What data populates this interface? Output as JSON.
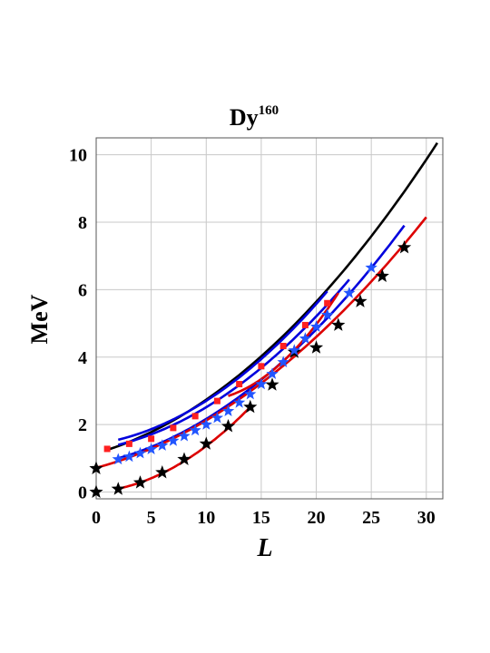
{
  "chart_data": {
    "type": "scatter",
    "title": "Dy",
    "title_superscript": "160",
    "xlabel": "L",
    "ylabel": "MeV",
    "xlim": [
      0,
      31.5
    ],
    "ylim": [
      -0.2,
      10.5
    ],
    "xticks": [
      0,
      5,
      10,
      15,
      20,
      25,
      30
    ],
    "yticks": [
      0,
      2,
      4,
      6,
      8,
      10
    ],
    "grid": true,
    "series": [
      {
        "color": "#000000",
        "marker": "star",
        "x": [
          0,
          2,
          4,
          6,
          8,
          10,
          12,
          14,
          16,
          18,
          20,
          22,
          24,
          26,
          28
        ],
        "y": [
          0.0,
          0.09,
          0.28,
          0.58,
          0.97,
          1.43,
          1.95,
          2.52,
          3.18,
          4.15,
          4.28,
          4.95,
          5.65,
          6.4,
          7.25
        ]
      },
      {
        "color": "#000000",
        "marker": "star",
        "x": [
          0
        ],
        "y": [
          0.7
        ]
      },
      {
        "color": "#2255ff",
        "marker": "star",
        "x": [
          2,
          3,
          4,
          5,
          6,
          7,
          8,
          9,
          10,
          11,
          12,
          13,
          14,
          15,
          16,
          17,
          18,
          19,
          20,
          21,
          23,
          25
        ],
        "y": [
          0.97,
          1.05,
          1.15,
          1.27,
          1.38,
          1.52,
          1.66,
          1.83,
          2.0,
          2.2,
          2.4,
          2.65,
          2.9,
          3.2,
          3.5,
          3.85,
          4.2,
          4.55,
          4.9,
          5.25,
          5.9,
          6.65
        ]
      },
      {
        "color": "#ff2020",
        "marker": "square",
        "x": [
          1,
          3,
          5,
          7,
          9,
          11,
          13,
          15,
          17,
          19,
          21
        ],
        "y": [
          1.28,
          1.43,
          1.58,
          1.9,
          2.25,
          2.7,
          3.2,
          3.73,
          4.33,
          4.95,
          5.6
        ]
      }
    ],
    "curves": [
      {
        "color": "#000000",
        "x": [
          1,
          31
        ],
        "y": [
          1.25,
          10.35
        ],
        "shape": "poly2"
      },
      {
        "color": "#0000dd",
        "x": [
          2,
          21
        ],
        "y": [
          1.55,
          5.95
        ],
        "shape": "poly2"
      },
      {
        "color": "#0000dd",
        "x": [
          2,
          23
        ],
        "y": [
          1.4,
          6.3
        ],
        "shape": "poly2"
      },
      {
        "color": "#0000dd",
        "x": [
          2,
          28
        ],
        "y": [
          1.0,
          7.9
        ],
        "shape": "poly2"
      },
      {
        "color": "#dd0000",
        "x": [
          0,
          30
        ],
        "y": [
          0.72,
          8.15
        ],
        "shape": "poly2"
      },
      {
        "color": "#dd0000",
        "x": [
          12,
          22
        ],
        "y": [
          2.85,
          5.9
        ],
        "shape": "poly2"
      },
      {
        "color": "#dd0000",
        "x": [
          2,
          14
        ],
        "y": [
          0.1,
          2.52
        ],
        "shape": "poly2"
      }
    ]
  }
}
